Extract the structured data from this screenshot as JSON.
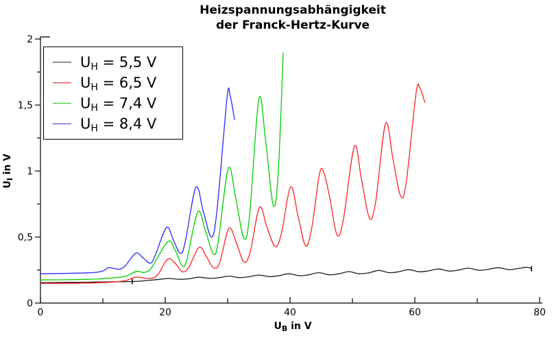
{
  "title": {
    "line1": "Heizspannungsabhängigkeit",
    "line2": "der Franck-Hertz-Kurve"
  },
  "axes": {
    "x": {
      "label": {
        "base": "U",
        "sub": "B",
        "rest": " in V"
      },
      "min": 0,
      "max": 80,
      "major_ticks": [
        0,
        20,
        40,
        60,
        80
      ],
      "minor_ticks": [
        10,
        30,
        50,
        70
      ],
      "tick_labels": [
        "0",
        "20",
        "40",
        "60",
        "80"
      ]
    },
    "y": {
      "label": {
        "base": "U",
        "sub": "I",
        "rest": " in V"
      },
      "min": 0,
      "max": 2,
      "major_ticks": [
        0,
        0.5,
        1,
        1.5,
        2
      ],
      "minor_ticks": [
        0.25,
        0.75,
        1.25,
        1.75
      ],
      "tick_labels": [
        "0",
        "0,5",
        "1",
        "1,5",
        "2"
      ]
    }
  },
  "legend": {
    "items": [
      {
        "base": "U",
        "sub": "H",
        "rest": " = 5,5 V",
        "swatch_color": "#8c8c8c"
      },
      {
        "base": "U",
        "sub": "H",
        "rest": " = 6,5 V",
        "swatch_color": "#f08080"
      },
      {
        "base": "U",
        "sub": "H",
        "rest": " = 7,4 V",
        "swatch_color": "#7fdf7f"
      },
      {
        "base": "U",
        "sub": "H",
        "rest": " = 8,4 V",
        "swatch_color": "#8f8fe8"
      }
    ]
  },
  "chart_data": {
    "type": "line",
    "title": "Heizspannungsabhängigkeit der Franck-Hertz-Kurve",
    "xlabel": "U_B in V",
    "ylabel": "U_I in V",
    "xlim": [
      0,
      80
    ],
    "ylim": [
      0,
      2
    ],
    "grid": false,
    "legend_position": "upper-left",
    "series": [
      {
        "name": "U_H = 5,5 V",
        "color": "#1a1a1a",
        "points": [
          [
            0,
            0.155
          ],
          [
            3,
            0.156
          ],
          [
            6,
            0.157
          ],
          [
            9,
            0.159
          ],
          [
            12,
            0.161
          ],
          [
            14.7,
            0.163
          ],
          [
            16.5,
            0.168
          ],
          [
            18.5,
            0.177
          ],
          [
            20.5,
            0.186
          ],
          [
            22.3,
            0.18
          ],
          [
            23.8,
            0.184
          ],
          [
            25.4,
            0.196
          ],
          [
            27.1,
            0.187
          ],
          [
            28.6,
            0.192
          ],
          [
            30.2,
            0.204
          ],
          [
            31.9,
            0.193
          ],
          [
            33.4,
            0.199
          ],
          [
            35,
            0.212
          ],
          [
            36.7,
            0.2
          ],
          [
            38.2,
            0.207
          ],
          [
            39.8,
            0.222
          ],
          [
            41.5,
            0.207
          ],
          [
            43,
            0.214
          ],
          [
            44.6,
            0.23
          ],
          [
            46.3,
            0.214
          ],
          [
            47.8,
            0.221
          ],
          [
            49.4,
            0.238
          ],
          [
            51.1,
            0.222
          ],
          [
            52.6,
            0.229
          ],
          [
            54.2,
            0.247
          ],
          [
            55.9,
            0.23
          ],
          [
            57.4,
            0.237
          ],
          [
            59,
            0.253
          ],
          [
            60.7,
            0.237
          ],
          [
            62.2,
            0.244
          ],
          [
            63.8,
            0.258
          ],
          [
            65.5,
            0.242
          ],
          [
            67,
            0.25
          ],
          [
            68.6,
            0.264
          ],
          [
            70.3,
            0.248
          ],
          [
            71.8,
            0.256
          ],
          [
            73.4,
            0.268
          ],
          [
            75.1,
            0.253
          ],
          [
            76.6,
            0.262
          ],
          [
            78,
            0.271
          ],
          [
            78.7,
            0.26
          ]
        ]
      },
      {
        "name": "U_H = 6,5 V",
        "color": "#ff2020",
        "points": [
          [
            0,
            0.148
          ],
          [
            3,
            0.149
          ],
          [
            6,
            0.15
          ],
          [
            9,
            0.153
          ],
          [
            11,
            0.157
          ],
          [
            12.5,
            0.162
          ],
          [
            13.8,
            0.172
          ],
          [
            15.2,
            0.196
          ],
          [
            16.3,
            0.192
          ],
          [
            17.6,
            0.186
          ],
          [
            18.8,
            0.215
          ],
          [
            20.4,
            0.333
          ],
          [
            21.6,
            0.3
          ],
          [
            22.7,
            0.238
          ],
          [
            23.7,
            0.265
          ],
          [
            25.4,
            0.42
          ],
          [
            26.5,
            0.36
          ],
          [
            27.7,
            0.268
          ],
          [
            28.7,
            0.305
          ],
          [
            30.2,
            0.565
          ],
          [
            31.4,
            0.455
          ],
          [
            32.6,
            0.312
          ],
          [
            33.6,
            0.385
          ],
          [
            35.1,
            0.725
          ],
          [
            36.3,
            0.575
          ],
          [
            37.6,
            0.428
          ],
          [
            38.6,
            0.525
          ],
          [
            40.1,
            0.88
          ],
          [
            41.3,
            0.655
          ],
          [
            42.5,
            0.432
          ],
          [
            43.5,
            0.575
          ],
          [
            44.7,
            0.975
          ],
          [
            45.4,
            0.99
          ],
          [
            46.4,
            0.79
          ],
          [
            47.5,
            0.518
          ],
          [
            48.5,
            0.62
          ],
          [
            50.3,
            1.185
          ],
          [
            51.4,
            0.95
          ],
          [
            52.7,
            0.645
          ],
          [
            53.7,
            0.76
          ],
          [
            55.3,
            1.36
          ],
          [
            56.5,
            1.09
          ],
          [
            57.7,
            0.812
          ],
          [
            58.6,
            0.91
          ],
          [
            60.2,
            1.59
          ],
          [
            60.8,
            1.63
          ],
          [
            61.6,
            1.52
          ]
        ]
      },
      {
        "name": "U_H = 7,4 V",
        "color": "#00cc00",
        "points": [
          [
            0,
            0.175
          ],
          [
            3,
            0.176
          ],
          [
            6,
            0.178
          ],
          [
            9,
            0.182
          ],
          [
            11,
            0.188
          ],
          [
            12.5,
            0.195
          ],
          [
            13.8,
            0.205
          ],
          [
            15.4,
            0.24
          ],
          [
            16.6,
            0.232
          ],
          [
            17.8,
            0.268
          ],
          [
            20.4,
            0.465
          ],
          [
            21.6,
            0.4
          ],
          [
            22.7,
            0.282
          ],
          [
            23.5,
            0.335
          ],
          [
            25.2,
            0.69
          ],
          [
            26.4,
            0.555
          ],
          [
            27.7,
            0.372
          ],
          [
            28.5,
            0.47
          ],
          [
            30.1,
            1.02
          ],
          [
            31.3,
            0.795
          ],
          [
            32.6,
            0.49
          ],
          [
            33.5,
            0.66
          ],
          [
            35,
            1.545
          ],
          [
            36.1,
            1.225
          ],
          [
            37.3,
            0.74
          ],
          [
            38.1,
            0.98
          ],
          [
            38.9,
            1.895
          ]
        ]
      },
      {
        "name": "U_H = 8,4 V",
        "color": "#2727ff",
        "points": [
          [
            0,
            0.222
          ],
          [
            3,
            0.224
          ],
          [
            6,
            0.227
          ],
          [
            8.5,
            0.231
          ],
          [
            10,
            0.243
          ],
          [
            10.9,
            0.268
          ],
          [
            11.9,
            0.261
          ],
          [
            12.7,
            0.257
          ],
          [
            13.6,
            0.283
          ],
          [
            15.3,
            0.378
          ],
          [
            16.4,
            0.344
          ],
          [
            17.6,
            0.302
          ],
          [
            18.4,
            0.362
          ],
          [
            20.2,
            0.572
          ],
          [
            21.3,
            0.478
          ],
          [
            22.4,
            0.376
          ],
          [
            23.2,
            0.462
          ],
          [
            24.9,
            0.875
          ],
          [
            26.1,
            0.695
          ],
          [
            27.4,
            0.5
          ],
          [
            28.3,
            0.705
          ],
          [
            29.9,
            1.555
          ],
          [
            30.4,
            1.57
          ],
          [
            31.1,
            1.39
          ]
        ]
      }
    ],
    "cursor_markers": [
      {
        "series": "U_H = 5,5 V",
        "x": 14.7,
        "y": 0.163
      },
      {
        "series": "U_H = 5,5 V",
        "x": 78.7,
        "y": 0.26
      }
    ]
  },
  "colors": {
    "axis": "#000000",
    "text": "#000000",
    "background": "#ffffff"
  }
}
